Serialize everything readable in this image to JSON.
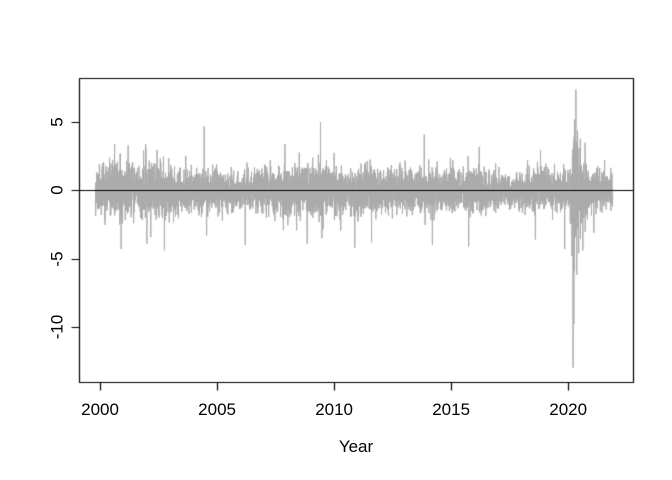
{
  "chart_data": {
    "type": "line",
    "title": "",
    "xlabel": "Year",
    "ylabel": "",
    "x_ticks": [
      2000,
      2005,
      2010,
      2015,
      2020
    ],
    "x_tick_labels": [
      "2000",
      "2005",
      "2010",
      "2015",
      "2020"
    ],
    "y_ticks": [
      5,
      0,
      -5,
      -10
    ],
    "y_tick_labels": [
      "5",
      "0",
      "-5",
      "-10"
    ],
    "xlim": [
      1999.1,
      2022.77
    ],
    "ylim": [
      -14.05,
      8.25
    ],
    "grid": false,
    "legend": null,
    "zero_line_y": 0,
    "series_color": "#ababab",
    "axis_color": "#000000",
    "background_color": "#ffffff",
    "x_start": 1999.8,
    "x_end": 2021.9,
    "n_points": 5545,
    "seed": 11,
    "max_value": 7.4,
    "max_value_x": 2020.33,
    "min_value": -13.0,
    "min_value_x": 2020.21,
    "volatility_profile": [
      [
        1999.8,
        0.85
      ],
      [
        2001.0,
        0.95
      ],
      [
        2002.6,
        1.0
      ],
      [
        2003.6,
        0.8
      ],
      [
        2004.5,
        0.85
      ],
      [
        2005.5,
        0.65
      ],
      [
        2006.5,
        0.7
      ],
      [
        2007.6,
        0.85
      ],
      [
        2008.6,
        1.0
      ],
      [
        2009.5,
        1.05
      ],
      [
        2010.5,
        0.85
      ],
      [
        2011.6,
        0.95
      ],
      [
        2012.5,
        0.75
      ],
      [
        2013.5,
        0.8
      ],
      [
        2014.5,
        0.75
      ],
      [
        2015.8,
        0.9
      ],
      [
        2016.5,
        0.8
      ],
      [
        2017.5,
        0.55
      ],
      [
        2018.6,
        0.8
      ],
      [
        2019.5,
        0.7
      ],
      [
        2020.1,
        0.9
      ],
      [
        2020.25,
        2.4
      ],
      [
        2020.55,
        1.25
      ],
      [
        2021.0,
        0.8
      ],
      [
        2021.9,
        0.65
      ]
    ],
    "outliers": [
      [
        2000.62,
        3.4
      ],
      [
        2000.9,
        -4.3
      ],
      [
        2001.2,
        3.3
      ],
      [
        2002.0,
        -3.9
      ],
      [
        2002.75,
        -4.4
      ],
      [
        2004.45,
        4.7
      ],
      [
        2004.55,
        -3.3
      ],
      [
        2006.2,
        -4.0
      ],
      [
        2007.9,
        3.4
      ],
      [
        2008.85,
        -3.9
      ],
      [
        2009.42,
        5.0
      ],
      [
        2009.48,
        -3.5
      ],
      [
        2010.88,
        -4.2
      ],
      [
        2011.6,
        -3.8
      ],
      [
        2013.85,
        4.1
      ],
      [
        2014.2,
        -4.0
      ],
      [
        2015.75,
        -4.1
      ],
      [
        2016.2,
        3.2
      ],
      [
        2018.6,
        -3.6
      ],
      [
        2019.85,
        -4.3
      ],
      [
        2020.16,
        -4.8
      ],
      [
        2020.21,
        -13.0
      ],
      [
        2020.24,
        -9.8
      ],
      [
        2020.27,
        5.2
      ],
      [
        2020.33,
        7.4
      ],
      [
        2020.37,
        -6.2
      ],
      [
        2020.4,
        4.4
      ],
      [
        2020.45,
        -4.6
      ],
      [
        2020.52,
        3.8
      ],
      [
        2020.63,
        -4.4
      ],
      [
        2020.72,
        3.5
      ],
      [
        2021.1,
        -3.1
      ]
    ]
  }
}
